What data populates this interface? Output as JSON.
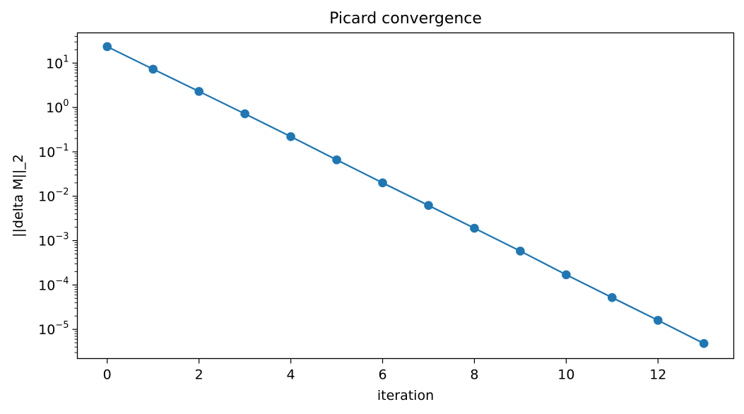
{
  "chart_data": {
    "type": "line",
    "title": "Picard convergence",
    "xlabel": "iteration",
    "ylabel": "||delta M||_2",
    "xlim": [
      -0.65,
      13.65
    ],
    "ylim": [
      2.2e-06,
      48
    ],
    "yscale": "log",
    "grid": false,
    "x_ticks": [
      0,
      2,
      4,
      6,
      8,
      10,
      12
    ],
    "y_ticks": [
      {
        "base": "10",
        "exp": "−5",
        "value": 1e-05
      },
      {
        "base": "10",
        "exp": "−4",
        "value": 0.0001
      },
      {
        "base": "10",
        "exp": "−3",
        "value": 0.001
      },
      {
        "base": "10",
        "exp": "−2",
        "value": 0.01
      },
      {
        "base": "10",
        "exp": "−1",
        "value": 0.1
      },
      {
        "base": "10",
        "exp": "0",
        "value": 1
      },
      {
        "base": "10",
        "exp": "1",
        "value": 10
      }
    ],
    "series": [
      {
        "color": "#1f77b4",
        "marker": "circle",
        "x": [
          0,
          1,
          2,
          3,
          4,
          5,
          6,
          7,
          8,
          9,
          10,
          11,
          12,
          13
        ],
        "y": [
          23.5,
          7.3,
          2.3,
          0.72,
          0.22,
          0.066,
          0.02,
          0.0062,
          0.0019,
          0.00058,
          0.00017,
          5.2e-05,
          1.6e-05,
          4.8e-06
        ]
      }
    ]
  }
}
